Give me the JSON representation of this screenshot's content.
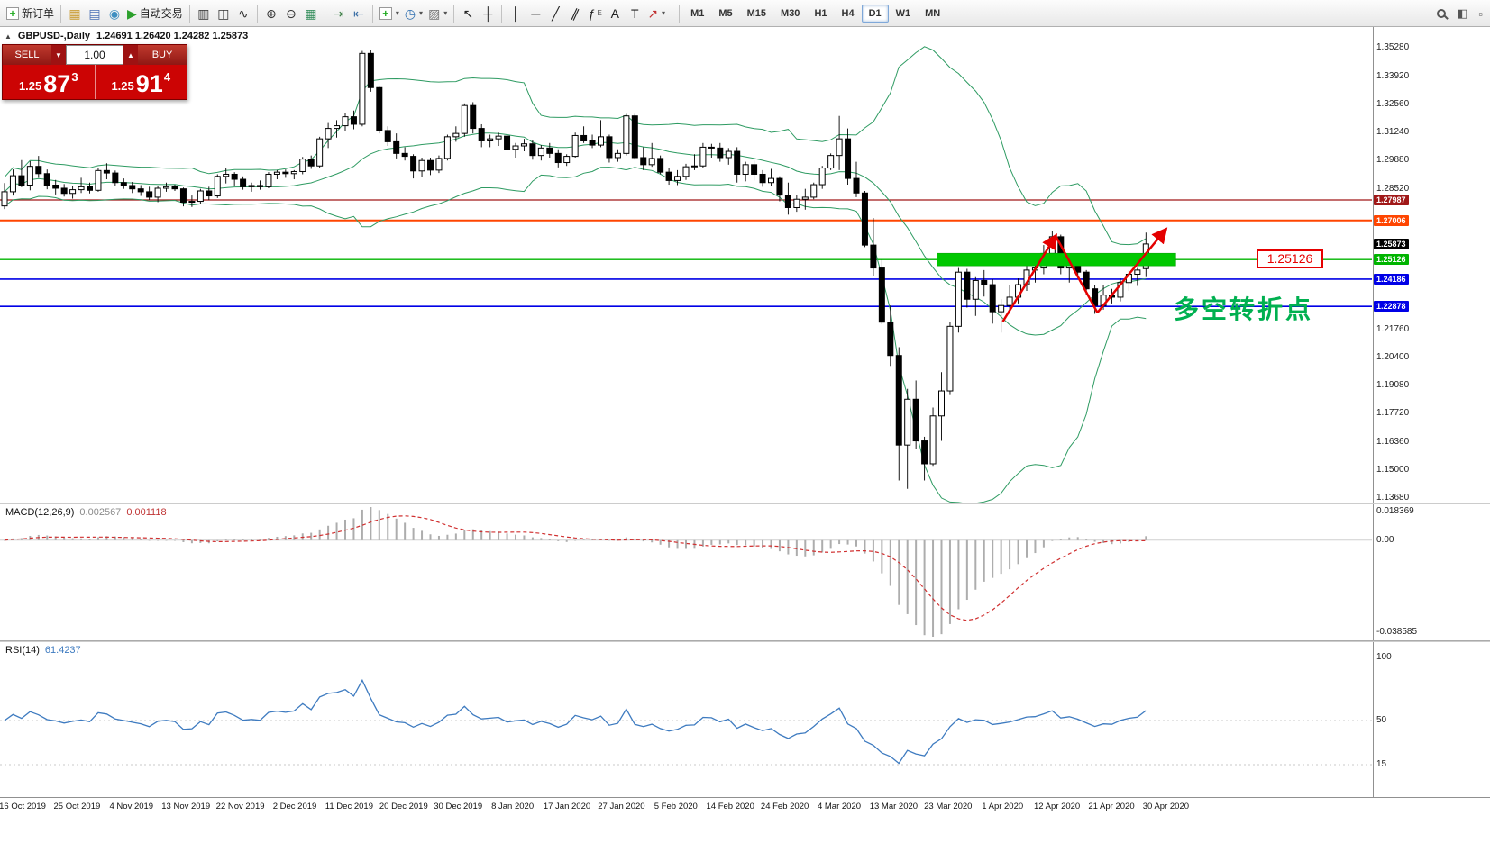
{
  "toolbar": {
    "groups": [
      [
        {
          "name": "new-order-button",
          "glyph": "+",
          "color": "#1faa1f",
          "box": true,
          "label": "新订单"
        }
      ],
      [
        {
          "name": "new-chart-icon",
          "glyph": "▦",
          "color": "#c99a2e"
        },
        {
          "name": "profiles-icon",
          "glyph": "▤",
          "color": "#4a6fb5"
        },
        {
          "name": "data-window-icon",
          "glyph": "◉",
          "color": "#3f8fc0"
        },
        {
          "name": "autotrading-button",
          "glyph": "▶",
          "color": "#2ca02c",
          "label": "自动交易"
        }
      ],
      [
        {
          "name": "bar-chart-icon",
          "glyph": "▥",
          "color": "#333"
        },
        {
          "name": "candlestick-chart-icon",
          "glyph": "◫",
          "color": "#333"
        },
        {
          "name": "line-chart-icon",
          "glyph": "∿",
          "color": "#333"
        }
      ],
      [
        {
          "name": "zoom-in-icon",
          "glyph": "⊕",
          "color": "#333"
        },
        {
          "name": "zoom-out-icon",
          "glyph": "⊖",
          "color": "#333"
        },
        {
          "name": "tile-windows-icon",
          "glyph": "▦",
          "color": "#2e8b57"
        }
      ],
      [
        {
          "name": "auto-scroll-icon",
          "glyph": "⇥",
          "color": "#3a7d44"
        },
        {
          "name": "chart-shift-icon",
          "glyph": "⇤",
          "color": "#3a6ea5"
        }
      ],
      [
        {
          "name": "insert-indicator-icon",
          "glyph": "+",
          "color": "#1faa1f",
          "box": true,
          "caret": true
        },
        {
          "name": "periods-icon",
          "glyph": "◷",
          "color": "#2f6fb0",
          "caret": true
        },
        {
          "name": "templates-icon",
          "glyph": "▨",
          "color": "#777",
          "caret": true
        }
      ],
      [
        {
          "name": "cursor-icon",
          "glyph": "↖",
          "color": "#222"
        },
        {
          "name": "crosshair-icon",
          "glyph": "┼",
          "color": "#222"
        }
      ],
      [
        {
          "name": "vertical-line-icon",
          "glyph": "│",
          "color": "#222"
        },
        {
          "name": "horizontal-line-icon",
          "glyph": "─",
          "color": "#222"
        },
        {
          "name": "trendline-icon",
          "glyph": "╱",
          "color": "#222"
        },
        {
          "name": "equidistant-channel-icon",
          "glyph": "∥",
          "color": "#222",
          "slant": true
        },
        {
          "name": "fibonacci-icon",
          "glyph": "ƒ",
          "color": "#222",
          "sub": "E"
        },
        {
          "name": "text-icon",
          "glyph": "A",
          "color": "#222"
        },
        {
          "name": "label-icon",
          "glyph": "T",
          "color": "#222"
        },
        {
          "name": "arrows-icon",
          "glyph": "↗",
          "color": "#c03030",
          "caret": true
        }
      ]
    ],
    "timeframes": [
      "M1",
      "M5",
      "M15",
      "M30",
      "H1",
      "H4",
      "D1",
      "W1",
      "MN"
    ],
    "active_timeframe": "D1",
    "right_items": [
      {
        "name": "search-icon",
        "type": "search"
      },
      {
        "name": "dock-windows-icon",
        "glyph": "◧",
        "color": "#555"
      },
      {
        "name": "expand-toolbar-icon",
        "glyph": "▫",
        "color": "#555"
      }
    ]
  },
  "chart": {
    "symbol_title": "GBPUSD-,Daily",
    "ohlc_text": "1.24691 1.26420 1.24282 1.25873"
  },
  "trade_panel": {
    "sell_label": "SELL",
    "buy_label": "BUY",
    "volume": "1.00",
    "sell_price_prefix": "1.25",
    "sell_price_big": "87",
    "sell_price_sup": "3",
    "buy_price_prefix": "1.25",
    "buy_price_big": "91",
    "buy_price_sup": "4"
  },
  "annotations": {
    "zone_price_label": "1.25126",
    "turning_point_text": "多空转折点"
  },
  "price_axis": {
    "plain": [
      {
        "text": "1.35280",
        "price": 1.3528
      },
      {
        "text": "1.33920",
        "price": 1.3392
      },
      {
        "text": "1.32560",
        "price": 1.3256
      },
      {
        "text": "1.31240",
        "price": 1.3124
      },
      {
        "text": "1.29880",
        "price": 1.2988
      },
      {
        "text": "1.28520",
        "price": 1.2852
      },
      {
        "text": "1.21760",
        "price": 1.2176
      },
      {
        "text": "1.20400",
        "price": 1.204
      },
      {
        "text": "1.19080",
        "price": 1.1908
      },
      {
        "text": "1.17720",
        "price": 1.1772
      },
      {
        "text": "1.16360",
        "price": 1.1636
      },
      {
        "text": "1.15000",
        "price": 1.15
      },
      {
        "text": "1.13680",
        "price": 1.1368
      }
    ],
    "boxes": [
      {
        "text": "1.27987",
        "price": 1.27987,
        "color": "#A01818"
      },
      {
        "text": "1.27006",
        "price": 1.27006,
        "color": "#FF4500"
      },
      {
        "text": "1.25873",
        "price": 1.25873,
        "color": "#000000"
      },
      {
        "text": "1.25126",
        "price": 1.25126,
        "color": "#00B400"
      },
      {
        "text": "1.24186",
        "price": 1.24186,
        "color": "#0000E6"
      },
      {
        "text": "1.22878",
        "price": 1.22878,
        "color": "#0000E6"
      }
    ]
  },
  "macd": {
    "label": "MACD(12,26,9)",
    "value_main": "0.002567",
    "value_signal": "0.001118",
    "axis_labels": [
      {
        "text": "0.018369",
        "pos": "top"
      },
      {
        "text": "0.00",
        "pos": "zero"
      },
      {
        "text": "-0.038585",
        "pos": "bottom"
      }
    ]
  },
  "rsi": {
    "label": "RSI(14)",
    "value": "61.4237",
    "axis_labels": [
      "100",
      "50",
      "15"
    ],
    "levels": [
      50,
      15
    ]
  },
  "time_axis": [
    "16 Oct 2019",
    "25 Oct 2019",
    "4 Nov 2019",
    "13 Nov 2019",
    "22 Nov 2019",
    "2 Dec 2019",
    "11 Dec 2019",
    "20 Dec 2019",
    "30 Dec 2019",
    "8 Jan 2020",
    "17 Jan 2020",
    "27 Jan 2020",
    "5 Feb 2020",
    "14 Feb 2020",
    "24 Feb 2020",
    "4 Mar 2020",
    "13 Mar 2020",
    "23 Mar 2020",
    "1 Apr 2020",
    "12 Apr 2020",
    "21 Apr 2020",
    "30 Apr 2020"
  ],
  "chart_data": {
    "type": "candlestick",
    "symbol": "GBPUSD",
    "timeframe": "Daily",
    "current_ohlc": {
      "open": 1.24691,
      "high": 1.2642,
      "low": 1.24282,
      "close": 1.25873
    },
    "indicators": {
      "bollinger": {
        "period": 20,
        "deviation": 2,
        "color": "#2E9B62"
      },
      "macd": {
        "fast": 12,
        "slow": 26,
        "signal": 9,
        "main_color": "#ADADAD",
        "signal_color": "#D03030",
        "scale_max": 0.018369,
        "scale_min": -0.038585
      },
      "rsi": {
        "period": 14,
        "color": "#3E7BC0",
        "current": 61.4237
      }
    },
    "horizontal_lines": [
      {
        "price": 1.27987,
        "color": "#A01818",
        "width": 1.2
      },
      {
        "price": 1.27006,
        "color": "#FF4500",
        "width": 2
      },
      {
        "price": 1.25126,
        "color": "#00B400",
        "width": 1.4
      },
      {
        "price": 1.24186,
        "color": "#0000E6",
        "width": 1.6
      },
      {
        "price": 1.22878,
        "color": "#0000E6",
        "width": 1.6
      }
    ],
    "annotations": {
      "zone": {
        "price": 1.25126,
        "bar_start": 109.5,
        "bar_end": 137.5,
        "color": "#00C800"
      },
      "zigzag": {
        "color": "#E40000",
        "points": [
          [
            117.2,
            1.2215
          ],
          [
            123.4,
            1.2626
          ],
          [
            128.3,
            1.2258
          ],
          [
            136.3,
            1.2656
          ]
        ]
      }
    },
    "candles": [
      [
        1.277,
        1.288,
        1.2755,
        1.2838
      ],
      [
        1.2838,
        1.2945,
        1.282,
        1.2915
      ],
      [
        1.2915,
        1.299,
        1.286,
        1.287
      ],
      [
        1.287,
        1.2985,
        1.2845,
        1.296
      ],
      [
        1.296,
        1.301,
        1.2905,
        1.2925
      ],
      [
        1.2925,
        1.2945,
        1.285,
        1.287
      ],
      [
        1.287,
        1.2895,
        1.2825,
        1.2855
      ],
      [
        1.2855,
        1.2875,
        1.2815,
        1.283
      ],
      [
        1.283,
        1.2865,
        1.2805,
        1.2848
      ],
      [
        1.2848,
        1.2905,
        1.2832,
        1.2862
      ],
      [
        1.2862,
        1.2882,
        1.283,
        1.2845
      ],
      [
        1.2845,
        1.2952,
        1.2838,
        1.294
      ],
      [
        1.294,
        1.2975,
        1.2898,
        1.2928
      ],
      [
        1.2928,
        1.294,
        1.2868,
        1.2882
      ],
      [
        1.2882,
        1.2902,
        1.2852,
        1.2868
      ],
      [
        1.2868,
        1.2885,
        1.2832,
        1.2852
      ],
      [
        1.2852,
        1.287,
        1.2818,
        1.2838
      ],
      [
        1.2838,
        1.2862,
        1.2798,
        1.2812
      ],
      [
        1.2812,
        1.2868,
        1.2788,
        1.2855
      ],
      [
        1.2855,
        1.2882,
        1.2838,
        1.2862
      ],
      [
        1.2862,
        1.2872,
        1.2842,
        1.2852
      ],
      [
        1.2852,
        1.2858,
        1.2768,
        1.2788
      ],
      [
        1.2788,
        1.282,
        1.2765,
        1.2792
      ],
      [
        1.2792,
        1.2852,
        1.278,
        1.2842
      ],
      [
        1.2842,
        1.2862,
        1.2798,
        1.2818
      ],
      [
        1.2818,
        1.2922,
        1.2808,
        1.2912
      ],
      [
        1.2912,
        1.295,
        1.2878,
        1.2922
      ],
      [
        1.2922,
        1.2932,
        1.2868,
        1.2898
      ],
      [
        1.2898,
        1.2912,
        1.2848,
        1.2862
      ],
      [
        1.2862,
        1.2882,
        1.2838,
        1.2868
      ],
      [
        1.2868,
        1.2892,
        1.2848,
        1.2862
      ],
      [
        1.2862,
        1.2932,
        1.2855,
        1.2922
      ],
      [
        1.2922,
        1.2942,
        1.2898,
        1.2932
      ],
      [
        1.2932,
        1.2945,
        1.2905,
        1.2925
      ],
      [
        1.2925,
        1.2942,
        1.2898,
        1.2935
      ],
      [
        1.2935,
        1.3005,
        1.2922,
        1.2995
      ],
      [
        1.2995,
        1.3012,
        1.2948,
        1.2962
      ],
      [
        1.2962,
        1.3102,
        1.2952,
        1.3092
      ],
      [
        1.3092,
        1.3168,
        1.3048,
        1.3142
      ],
      [
        1.3142,
        1.3182,
        1.3098,
        1.3155
      ],
      [
        1.3155,
        1.3215,
        1.3128,
        1.3198
      ],
      [
        1.3198,
        1.3228,
        1.3138,
        1.3162
      ],
      [
        1.3162,
        1.3514,
        1.3152,
        1.3502
      ],
      [
        1.3502,
        1.352,
        1.3318,
        1.3338
      ],
      [
        1.3338,
        1.3342,
        1.3118,
        1.3132
      ],
      [
        1.3132,
        1.3152,
        1.3058,
        1.3078
      ],
      [
        1.3078,
        1.3118,
        1.2998,
        1.3022
      ],
      [
        1.3022,
        1.3052,
        1.2988,
        1.3008
      ],
      [
        1.3008,
        1.3018,
        1.2902,
        1.2938
      ],
      [
        1.2938,
        1.3002,
        1.2908,
        1.2988
      ],
      [
        1.2988,
        1.3002,
        1.2918,
        1.2942
      ],
      [
        1.2942,
        1.3012,
        1.2928,
        1.2998
      ],
      [
        1.2998,
        1.3112,
        1.2988,
        1.3102
      ],
      [
        1.3102,
        1.3152,
        1.3078,
        1.3118
      ],
      [
        1.3118,
        1.3262,
        1.3102,
        1.3252
      ],
      [
        1.3252,
        1.3268,
        1.3118,
        1.3142
      ],
      [
        1.3142,
        1.3162,
        1.3052,
        1.3082
      ],
      [
        1.3082,
        1.3112,
        1.3052,
        1.3092
      ],
      [
        1.3092,
        1.3122,
        1.3058,
        1.3105
      ],
      [
        1.3105,
        1.3132,
        1.3012,
        1.3042
      ],
      [
        1.3042,
        1.3072,
        1.3002,
        1.3058
      ],
      [
        1.3058,
        1.3092,
        1.3032,
        1.3068
      ],
      [
        1.3068,
        1.3088,
        1.2992,
        1.3012
      ],
      [
        1.3012,
        1.3062,
        1.2988,
        1.3048
      ],
      [
        1.3048,
        1.3072,
        1.3002,
        1.3022
      ],
      [
        1.3022,
        1.3042,
        1.2955,
        1.2978
      ],
      [
        1.2978,
        1.3018,
        1.2962,
        1.3008
      ],
      [
        1.3008,
        1.3122,
        1.3002,
        1.3108
      ],
      [
        1.3108,
        1.3152,
        1.3072,
        1.3082
      ],
      [
        1.3082,
        1.3112,
        1.3048,
        1.3062
      ],
      [
        1.3062,
        1.3182,
        1.3052,
        1.3102
      ],
      [
        1.3102,
        1.3112,
        1.2978,
        1.3002
      ],
      [
        1.3002,
        1.3042,
        1.2982,
        1.3022
      ],
      [
        1.3022,
        1.3212,
        1.3012,
        1.3202
      ],
      [
        1.3202,
        1.3212,
        1.2992,
        1.3002
      ],
      [
        1.3002,
        1.3052,
        1.2942,
        1.2968
      ],
      [
        1.2968,
        1.3072,
        1.2958,
        1.2998
      ],
      [
        1.2998,
        1.3012,
        1.2922,
        1.2932
      ],
      [
        1.2932,
        1.2952,
        1.2872,
        1.2892
      ],
      [
        1.2892,
        1.2942,
        1.287,
        1.2912
      ],
      [
        1.2912,
        1.2972,
        1.2895,
        1.2958
      ],
      [
        1.2958,
        1.3018,
        1.2942,
        1.2962
      ],
      [
        1.2962,
        1.3072,
        1.2952,
        1.3052
      ],
      [
        1.3052,
        1.3068,
        1.3002,
        1.3048
      ],
      [
        1.3048,
        1.3072,
        1.2982,
        1.3002
      ],
      [
        1.3002,
        1.3048,
        1.2968,
        1.3032
      ],
      [
        1.3032,
        1.3052,
        1.2882,
        1.2922
      ],
      [
        1.2922,
        1.2982,
        1.2888,
        1.2968
      ],
      [
        1.2968,
        1.2988,
        1.2892,
        1.2922
      ],
      [
        1.2922,
        1.2942,
        1.2862,
        1.2882
      ],
      [
        1.2882,
        1.2948,
        1.2868,
        1.2902
      ],
      [
        1.2902,
        1.2912,
        1.2792,
        1.2822
      ],
      [
        1.2822,
        1.2882,
        1.2728,
        1.2762
      ],
      [
        1.2762,
        1.2822,
        1.2742,
        1.2802
      ],
      [
        1.2802,
        1.2852,
        1.2752,
        1.2812
      ],
      [
        1.2812,
        1.2882,
        1.2802,
        1.2872
      ],
      [
        1.2872,
        1.2962,
        1.2852,
        1.2952
      ],
      [
        1.2952,
        1.3022,
        1.2942,
        1.3012
      ],
      [
        1.3012,
        1.3202,
        1.2942,
        1.3092
      ],
      [
        1.3092,
        1.3142,
        1.2872,
        1.2902
      ],
      [
        1.2902,
        1.2982,
        1.2812,
        1.2832
      ],
      [
        1.2832,
        1.2842,
        1.2572,
        1.2582
      ],
      [
        1.2582,
        1.2712,
        1.2432,
        1.2472
      ],
      [
        1.2472,
        1.2512,
        1.2202,
        1.2212
      ],
      [
        1.2212,
        1.2292,
        1.2002,
        1.2052
      ],
      [
        1.2052,
        1.2092,
        1.1452,
        1.1622
      ],
      [
        1.1622,
        1.1892,
        1.1412,
        1.1842
      ],
      [
        1.1842,
        1.1932,
        1.1602,
        1.1642
      ],
      [
        1.1642,
        1.1662,
        1.1452,
        1.1532
      ],
      [
        1.1532,
        1.1802,
        1.1522,
        1.1762
      ],
      [
        1.1762,
        1.1972,
        1.1642,
        1.1882
      ],
      [
        1.1882,
        1.2212,
        1.1862,
        1.2192
      ],
      [
        1.2192,
        1.2472,
        1.2162,
        1.2452
      ],
      [
        1.2452,
        1.2468,
        1.2282,
        1.2322
      ],
      [
        1.2322,
        1.2428,
        1.2242,
        1.2412
      ],
      [
        1.2412,
        1.2462,
        1.2335,
        1.2392
      ],
      [
        1.2392,
        1.2418,
        1.2205,
        1.2262
      ],
      [
        1.2262,
        1.2322,
        1.2162,
        1.2292
      ],
      [
        1.2292,
        1.2392,
        1.2252,
        1.2332
      ],
      [
        1.2332,
        1.2422,
        1.2302,
        1.2392
      ],
      [
        1.2392,
        1.2482,
        1.2362,
        1.2462
      ],
      [
        1.2462,
        1.2522,
        1.2402,
        1.2472
      ],
      [
        1.2472,
        1.2582,
        1.2442,
        1.2542
      ],
      [
        1.2542,
        1.2648,
        1.2522,
        1.2622
      ],
      [
        1.2622,
        1.2632,
        1.2442,
        1.2472
      ],
      [
        1.2472,
        1.2522,
        1.2402,
        1.2502
      ],
      [
        1.2502,
        1.2542,
        1.2432,
        1.2452
      ],
      [
        1.2452,
        1.2462,
        1.2342,
        1.2372
      ],
      [
        1.2372,
        1.2392,
        1.2252,
        1.2292
      ],
      [
        1.2292,
        1.2392,
        1.2272,
        1.2342
      ],
      [
        1.2342,
        1.2372,
        1.2302,
        1.2332
      ],
      [
        1.2332,
        1.2422,
        1.2312,
        1.2402
      ],
      [
        1.2402,
        1.2462,
        1.2362,
        1.2442
      ],
      [
        1.2442,
        1.2472,
        1.2386,
        1.2462
      ],
      [
        1.24691,
        1.2642,
        1.24282,
        1.25873
      ]
    ]
  }
}
